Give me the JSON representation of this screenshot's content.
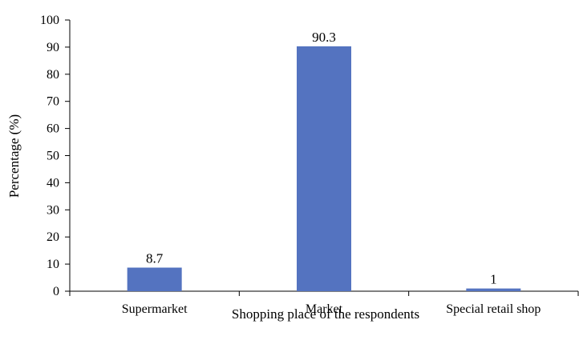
{
  "chart_data": {
    "type": "bar",
    "categories": [
      "Supermarket",
      "Market",
      "Special retail shop"
    ],
    "values": [
      8.7,
      90.3,
      1
    ],
    "value_labels": [
      "8.7",
      "90.3",
      "1"
    ],
    "xlabel": "Shopping place of the respondents",
    "ylabel": "Percentage (%)",
    "ylim": [
      0,
      100
    ],
    "yticks": [
      "0",
      "10",
      "20",
      "30",
      "40",
      "50",
      "60",
      "70",
      "80",
      "90",
      "100"
    ],
    "grid": false,
    "legend": "none",
    "bar_color": "#5473c0"
  }
}
